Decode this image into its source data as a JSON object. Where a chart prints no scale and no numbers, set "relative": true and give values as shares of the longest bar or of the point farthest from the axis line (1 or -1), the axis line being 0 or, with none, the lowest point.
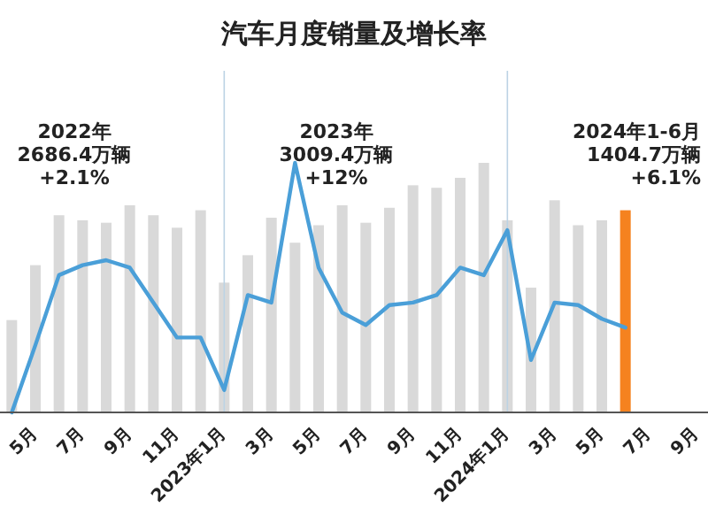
{
  "chart_data": {
    "type": "bar",
    "title": "汽车月度销量及增长率",
    "relative": true,
    "grid": false,
    "legend": false,
    "marker": "none",
    "line_style": "solid",
    "categories": [
      null,
      "5月",
      null,
      "7月",
      null,
      "9月",
      null,
      "11月",
      null,
      "2023年1月",
      null,
      "3月",
      null,
      "5月",
      null,
      "7月",
      null,
      "9月",
      null,
      "11月",
      null,
      "2024年1月",
      null,
      "3月",
      null,
      "5月",
      null,
      "7月",
      null,
      "9月"
    ],
    "series": [
      {
        "colors": [
          "#d9d9d9",
          "#d9d9d9",
          "#d9d9d9",
          "#d9d9d9",
          "#d9d9d9",
          "#d9d9d9",
          "#d9d9d9",
          "#d9d9d9",
          "#d9d9d9",
          "#d9d9d9",
          "#d9d9d9",
          "#d9d9d9",
          "#d9d9d9",
          "#d9d9d9",
          "#d9d9d9",
          "#d9d9d9",
          "#d9d9d9",
          "#d9d9d9",
          "#d9d9d9",
          "#d9d9d9",
          "#d9d9d9",
          "#d9d9d9",
          "#d9d9d9",
          "#d9d9d9",
          "#d9d9d9",
          "#d9d9d9",
          "#f5821f",
          null,
          null,
          null
        ],
        "values": [
          0.37,
          0.59,
          0.79,
          0.77,
          0.76,
          0.83,
          0.79,
          0.74,
          0.81,
          0.52,
          0.63,
          0.78,
          0.68,
          0.75,
          0.83,
          0.76,
          0.82,
          0.91,
          0.9,
          0.94,
          1,
          0.77,
          0.5,
          0.85,
          0.75,
          0.77,
          0.81,
          null,
          null,
          null
        ]
      },
      {
        "type": "line",
        "color": "#4a9fd8",
        "values": [
          0,
          0.27,
          0.55,
          0.59,
          0.61,
          0.58,
          0.44,
          0.3,
          0.3,
          0.09,
          0.47,
          0.44,
          1,
          0.58,
          0.4,
          0.35,
          0.43,
          0.44,
          0.47,
          0.58,
          0.55,
          0.73,
          0.21,
          0.44,
          0.43,
          0.375,
          0.34,
          null,
          null,
          null
        ]
      }
    ],
    "ref_lines": [
      {
        "axis": "x",
        "value": "2023年1月",
        "color": "#bcd3e4"
      },
      {
        "axis": "x",
        "value": "2024年1月",
        "color": "#bcd3e4"
      }
    ],
    "annotations": [
      "2022年\n2686.4万辆\n+2.1%",
      "2023年\n3009.4万辆\n+12%",
      "2024年1-6月\n1404.7万辆\n+6.1%"
    ]
  }
}
